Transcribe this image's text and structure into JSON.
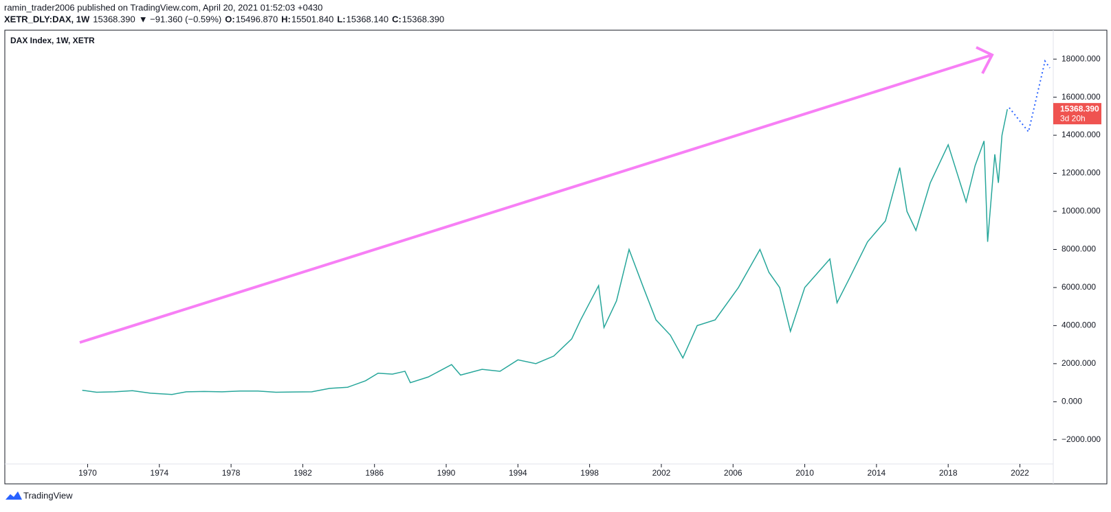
{
  "header": {
    "publisher": "ramin_trader2006 published on TradingView.com, April 20, 2021 01:52:03 +0430",
    "symbol": "XETR_DLY:DAX, 1W",
    "last": "15368.390",
    "change": "▼ −91.360 (−0.59%)",
    "ohlc": [
      {
        "key": "O:",
        "val": "15496.870"
      },
      {
        "key": "H:",
        "val": "15501.840"
      },
      {
        "key": "L:",
        "val": "15368.140"
      },
      {
        "key": "C:",
        "val": "15368.390"
      }
    ]
  },
  "badge": {
    "price": "15368.390",
    "countdown": "3d 20h"
  },
  "footer": {
    "brand": "TradingView"
  },
  "chart_data": {
    "type": "line",
    "title": "DAX Index, 1W, XETR",
    "x": [
      1969.7,
      1970.5,
      1971.5,
      1972.5,
      1973.5,
      1974.7,
      1975.5,
      1976.5,
      1977.5,
      1978.5,
      1979.5,
      1980.5,
      1981.5,
      1982.5,
      1983.5,
      1984.5,
      1985.5,
      1986.2,
      1987,
      1987.7,
      1988,
      1989,
      1990.3,
      1990.8,
      1992,
      1993,
      1994,
      1995,
      1996,
      1997,
      1997.5,
      1998.5,
      1998.8,
      1999.5,
      2000.2,
      2001,
      2001.7,
      2002.5,
      2003.2,
      2004,
      2005,
      2006.3,
      2007.5,
      2008,
      2008.6,
      2009.2,
      2010,
      2011.4,
      2011.8,
      2012.5,
      2013.5,
      2014.5,
      2015.3,
      2015.7,
      2016.2,
      2017,
      2018,
      2019,
      2019.5,
      2020,
      2020.2,
      2020.6,
      2020.8,
      2021,
      2021.3
    ],
    "series": [
      {
        "color": "#26a69a",
        "values": [
          600,
          500,
          520,
          580,
          450,
          380,
          520,
          540,
          520,
          560,
          560,
          500,
          510,
          520,
          700,
          760,
          1100,
          1500,
          1450,
          1600,
          1000,
          1300,
          1950,
          1400,
          1700,
          1600,
          2200,
          2000,
          2400,
          3300,
          4300,
          6100,
          3900,
          5300,
          8000,
          6000,
          4300,
          3500,
          2300,
          4000,
          4300,
          6000,
          8000,
          6800,
          6000,
          3700,
          6000,
          7500,
          5200,
          6500,
          8400,
          9500,
          12300,
          10000,
          9000,
          11500,
          13500,
          10500,
          12400,
          13700,
          8400,
          13000,
          11500,
          14000,
          15368.39
        ]
      }
    ],
    "xlim": [
      1965.38,
      2023.86
    ],
    "ylim": [
      -3270,
      19520
    ],
    "xticks": [
      1970,
      1974,
      1978,
      1982,
      1986,
      1990,
      1994,
      1998,
      2002,
      2006,
      2010,
      2014,
      2018,
      2022
    ],
    "yticks": [
      {
        "value": -2000,
        "label": "−2000.000"
      },
      {
        "value": 0,
        "label": "0.000"
      },
      {
        "value": 2000,
        "label": "2000.000"
      },
      {
        "value": 4000,
        "label": "4000.000"
      },
      {
        "value": 6000,
        "label": "6000.000"
      },
      {
        "value": 8000,
        "label": "8000.000"
      },
      {
        "value": 10000,
        "label": "10000.000"
      },
      {
        "value": 12000,
        "label": "12000.000"
      },
      {
        "value": 14000,
        "label": "14000.000"
      },
      {
        "value": 16000,
        "label": "16000.000"
      },
      {
        "value": 18000,
        "label": "18000.000"
      }
    ]
  }
}
